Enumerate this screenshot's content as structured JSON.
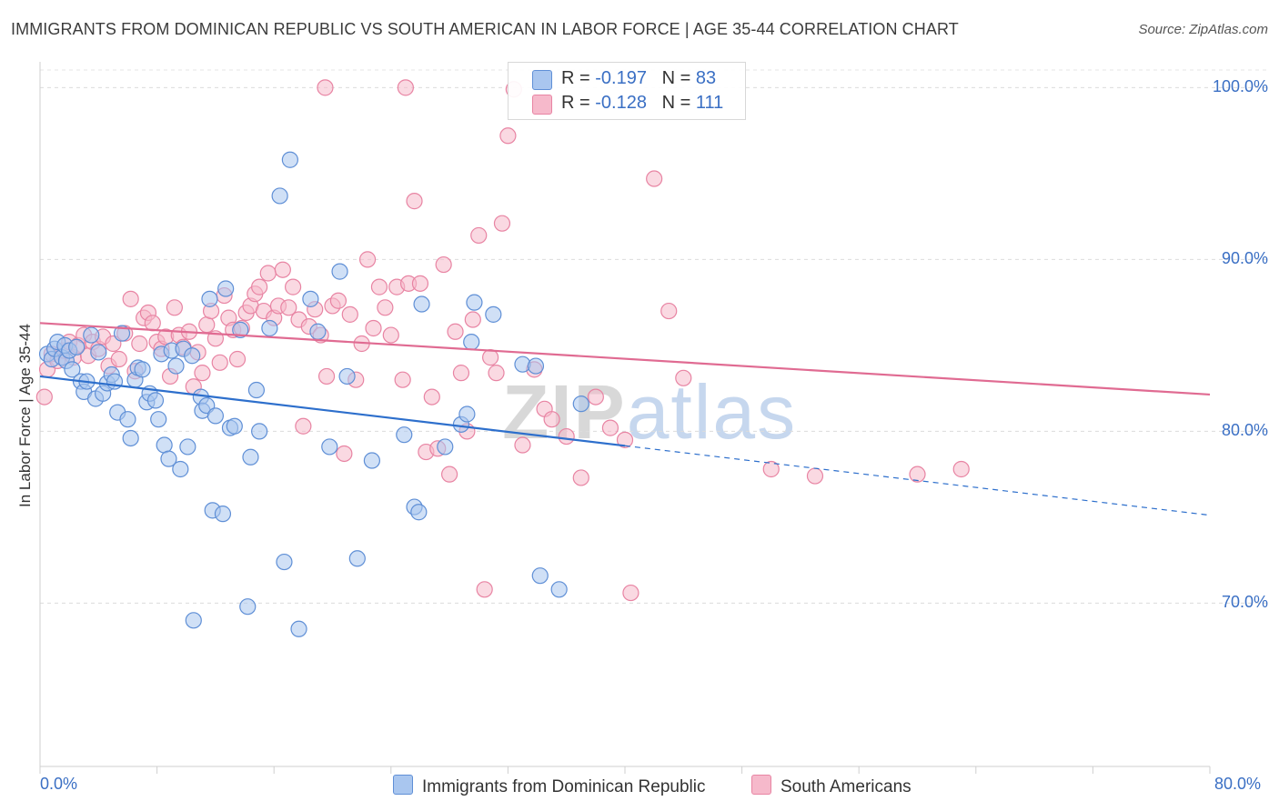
{
  "title": "IMMIGRANTS FROM DOMINICAN REPUBLIC VS SOUTH AMERICAN IN LABOR FORCE | AGE 35-44 CORRELATION CHART",
  "source": "Source: ZipAtlas.com",
  "watermark": {
    "zip": "ZIP",
    "atlas": "atlas"
  },
  "legend": {
    "row1": {
      "r_label": "R = ",
      "r_value": "-0.197",
      "n_label": "N = ",
      "n_value": "83"
    },
    "row2": {
      "r_label": "R = ",
      "r_value": "-0.128",
      "n_label": "N = ",
      "n_value": "111"
    }
  },
  "chart_data": {
    "type": "scatter",
    "ylabel": "In Labor Force | Age 35-44",
    "xlim": [
      0,
      80
    ],
    "ylim": [
      60.5,
      101.5
    ],
    "x_tick_labels": [
      "0.0%",
      "80.0%"
    ],
    "y_ticks": [
      {
        "value": 100,
        "label": "100.0%"
      },
      {
        "value": 90,
        "label": "90.0%"
      },
      {
        "value": 80,
        "label": "80.0%"
      },
      {
        "value": 70,
        "label": "70.0%"
      }
    ],
    "grid": "horizontal dashed",
    "colors": {
      "blue_fill": "#a9c6ef",
      "blue_stroke": "#5f8fd6",
      "blue_line": "#2d6fcc",
      "pink_fill": "#f6b9cb",
      "pink_stroke": "#e884a3",
      "pink_line": "#e06b92",
      "axis_text": "#3a6fc4"
    },
    "series": [
      {
        "name": "Immigrants from Dominican Republic",
        "trend": {
          "x0": 0,
          "y0": 83.2,
          "x_solid_end": 40,
          "x_end": 80,
          "slope": -0.101
        },
        "points": [
          [
            0.5,
            84.5
          ],
          [
            0.8,
            84.2
          ],
          [
            1.0,
            84.8
          ],
          [
            1.2,
            85.2
          ],
          [
            1.5,
            84.3
          ],
          [
            1.7,
            85.0
          ],
          [
            1.8,
            84.1
          ],
          [
            2.0,
            84.7
          ],
          [
            2.2,
            83.6
          ],
          [
            2.5,
            84.9
          ],
          [
            2.8,
            82.9
          ],
          [
            3.0,
            82.3
          ],
          [
            3.2,
            82.9
          ],
          [
            3.5,
            85.6
          ],
          [
            3.8,
            81.9
          ],
          [
            4.0,
            84.6
          ],
          [
            4.3,
            82.2
          ],
          [
            4.6,
            82.8
          ],
          [
            4.9,
            83.3
          ],
          [
            5.1,
            82.9
          ],
          [
            5.3,
            81.1
          ],
          [
            5.6,
            85.7
          ],
          [
            6.0,
            80.7
          ],
          [
            6.2,
            79.6
          ],
          [
            6.5,
            83.0
          ],
          [
            6.7,
            83.7
          ],
          [
            7.0,
            83.6
          ],
          [
            7.3,
            81.7
          ],
          [
            7.5,
            82.2
          ],
          [
            7.9,
            81.8
          ],
          [
            8.1,
            80.7
          ],
          [
            8.3,
            84.5
          ],
          [
            8.5,
            79.2
          ],
          [
            8.8,
            78.4
          ],
          [
            9.0,
            84.7
          ],
          [
            9.3,
            83.8
          ],
          [
            9.6,
            77.8
          ],
          [
            9.8,
            84.8
          ],
          [
            10.1,
            79.1
          ],
          [
            10.4,
            84.4
          ],
          [
            10.5,
            69.0
          ],
          [
            11.0,
            82.0
          ],
          [
            11.1,
            81.2
          ],
          [
            11.4,
            81.5
          ],
          [
            11.6,
            87.7
          ],
          [
            11.8,
            75.4
          ],
          [
            12.0,
            80.9
          ],
          [
            12.5,
            75.2
          ],
          [
            12.7,
            88.3
          ],
          [
            13.0,
            80.2
          ],
          [
            13.3,
            80.3
          ],
          [
            13.7,
            85.9
          ],
          [
            14.2,
            69.8
          ],
          [
            14.4,
            78.5
          ],
          [
            14.8,
            82.4
          ],
          [
            15.0,
            80.0
          ],
          [
            15.7,
            86.0
          ],
          [
            16.4,
            93.7
          ],
          [
            16.7,
            72.4
          ],
          [
            17.1,
            95.8
          ],
          [
            17.7,
            68.5
          ],
          [
            18.5,
            87.7
          ],
          [
            19.0,
            85.8
          ],
          [
            19.8,
            79.1
          ],
          [
            20.5,
            89.3
          ],
          [
            21.0,
            83.2
          ],
          [
            21.7,
            72.6
          ],
          [
            22.7,
            78.3
          ],
          [
            24.9,
            79.8
          ],
          [
            25.6,
            75.6
          ],
          [
            25.9,
            75.3
          ],
          [
            26.1,
            87.4
          ],
          [
            27.7,
            79.1
          ],
          [
            28.8,
            80.4
          ],
          [
            29.2,
            81.0
          ],
          [
            29.5,
            85.2
          ],
          [
            29.7,
            87.5
          ],
          [
            31.0,
            86.8
          ],
          [
            33.0,
            83.9
          ],
          [
            33.9,
            83.8
          ],
          [
            34.2,
            71.6
          ],
          [
            35.5,
            70.8
          ],
          [
            37.0,
            81.6
          ]
        ]
      },
      {
        "name": "South Americans",
        "trend": {
          "x0": 0,
          "y0": 86.3,
          "x_end": 80,
          "slope": -0.052
        },
        "points": [
          [
            0.3,
            82.0
          ],
          [
            0.5,
            83.6
          ],
          [
            0.8,
            84.5
          ],
          [
            1.2,
            84.1
          ],
          [
            1.6,
            84.7
          ],
          [
            2.0,
            85.2
          ],
          [
            2.3,
            84.3
          ],
          [
            2.6,
            85.0
          ],
          [
            3.0,
            85.6
          ],
          [
            3.3,
            84.4
          ],
          [
            3.6,
            85.2
          ],
          [
            4.0,
            84.8
          ],
          [
            4.3,
            85.5
          ],
          [
            4.7,
            83.8
          ],
          [
            5.0,
            85.1
          ],
          [
            5.4,
            84.2
          ],
          [
            5.8,
            85.7
          ],
          [
            6.2,
            87.7
          ],
          [
            6.5,
            83.5
          ],
          [
            6.8,
            85.1
          ],
          [
            7.1,
            86.6
          ],
          [
            7.4,
            86.9
          ],
          [
            7.7,
            86.3
          ],
          [
            8.0,
            85.2
          ],
          [
            8.3,
            84.8
          ],
          [
            8.6,
            85.5
          ],
          [
            8.9,
            83.2
          ],
          [
            9.2,
            87.2
          ],
          [
            9.5,
            85.6
          ],
          [
            9.8,
            84.9
          ],
          [
            10.2,
            85.8
          ],
          [
            10.5,
            82.6
          ],
          [
            10.8,
            84.6
          ],
          [
            11.1,
            83.4
          ],
          [
            11.4,
            86.2
          ],
          [
            11.7,
            87.0
          ],
          [
            12.0,
            85.4
          ],
          [
            12.3,
            84.0
          ],
          [
            12.6,
            87.9
          ],
          [
            12.9,
            86.6
          ],
          [
            13.2,
            85.9
          ],
          [
            13.5,
            84.2
          ],
          [
            13.8,
            86.0
          ],
          [
            14.1,
            86.9
          ],
          [
            14.4,
            87.3
          ],
          [
            14.7,
            88.0
          ],
          [
            15.0,
            88.4
          ],
          [
            15.3,
            87.0
          ],
          [
            15.6,
            89.2
          ],
          [
            16.0,
            86.6
          ],
          [
            16.3,
            87.3
          ],
          [
            16.6,
            89.4
          ],
          [
            17.0,
            87.2
          ],
          [
            17.3,
            88.4
          ],
          [
            17.7,
            86.5
          ],
          [
            18.0,
            80.3
          ],
          [
            18.4,
            86.1
          ],
          [
            18.8,
            87.1
          ],
          [
            19.2,
            85.6
          ],
          [
            19.6,
            83.2
          ],
          [
            20.0,
            87.3
          ],
          [
            20.4,
            87.6
          ],
          [
            20.8,
            78.7
          ],
          [
            21.2,
            86.8
          ],
          [
            21.6,
            83.0
          ],
          [
            22.0,
            85.1
          ],
          [
            22.4,
            90.0
          ],
          [
            22.8,
            86.0
          ],
          [
            23.2,
            88.4
          ],
          [
            23.6,
            87.2
          ],
          [
            24.0,
            85.6
          ],
          [
            24.4,
            88.4
          ],
          [
            24.8,
            83.0
          ],
          [
            25.2,
            88.6
          ],
          [
            25.6,
            93.4
          ],
          [
            26.0,
            88.6
          ],
          [
            26.4,
            78.8
          ],
          [
            26.8,
            82.0
          ],
          [
            27.2,
            79.0
          ],
          [
            27.6,
            89.7
          ],
          [
            28.0,
            77.5
          ],
          [
            28.4,
            85.8
          ],
          [
            28.8,
            83.4
          ],
          [
            29.2,
            80.0
          ],
          [
            29.6,
            86.5
          ],
          [
            30.0,
            91.4
          ],
          [
            30.4,
            70.8
          ],
          [
            30.8,
            84.3
          ],
          [
            31.2,
            83.4
          ],
          [
            31.6,
            92.1
          ],
          [
            32.0,
            97.2
          ],
          [
            32.4,
            99.9
          ],
          [
            33.0,
            79.2
          ],
          [
            33.8,
            83.6
          ],
          [
            34.5,
            81.3
          ],
          [
            35.0,
            80.7
          ],
          [
            36.0,
            79.7
          ],
          [
            37.0,
            77.3
          ],
          [
            38.0,
            82.0
          ],
          [
            39.0,
            80.2
          ],
          [
            40.0,
            79.5
          ],
          [
            40.4,
            70.6
          ],
          [
            42.0,
            94.7
          ],
          [
            43.0,
            87.0
          ],
          [
            44.0,
            83.1
          ],
          [
            50.0,
            77.8
          ],
          [
            53.0,
            77.4
          ],
          [
            60.0,
            77.5
          ],
          [
            63.0,
            77.8
          ],
          [
            25.0,
            100.0
          ],
          [
            19.5,
            100.0
          ]
        ]
      }
    ]
  },
  "bottom_legend": {
    "item1": "Immigrants from Dominican Republic",
    "item2": "South Americans"
  }
}
